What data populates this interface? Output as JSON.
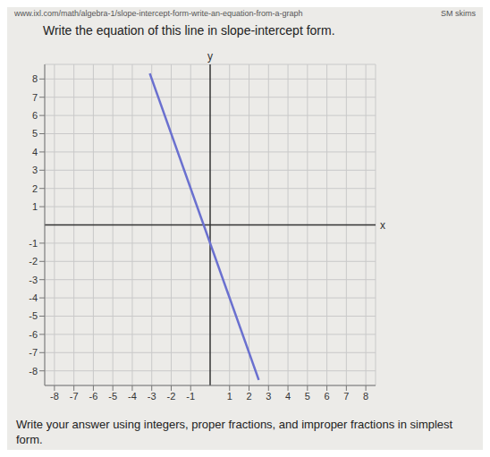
{
  "tabs": [
    "SM",
    "skims"
  ],
  "url": "www.ixl.com/math/algebra-1/slope-intercept-form-write-an-equation-from-a-graph",
  "question": "Write the equation of this line in slope-intercept form.",
  "instructions": "Write your answer using integers, proper fractions, and improper fractions in simplest form.",
  "chart_data": {
    "type": "line",
    "x_label": "x",
    "y_label": "y",
    "x": [
      -3.1,
      2.5
    ],
    "values": [
      8.3,
      -8.5
    ],
    "color": "#6a70cf",
    "xlim": [
      -8.5,
      8.5
    ],
    "ylim": [
      -8.8,
      8.8
    ],
    "xticks": [
      -8,
      -7,
      -6,
      -5,
      -4,
      -3,
      -2,
      -1,
      1,
      2,
      3,
      4,
      5,
      6,
      7,
      8
    ],
    "yticks": [
      -8,
      -7,
      -6,
      -5,
      -4,
      -3,
      -2,
      -1,
      1,
      2,
      3,
      4,
      5,
      6,
      7,
      8
    ],
    "grid": true
  }
}
